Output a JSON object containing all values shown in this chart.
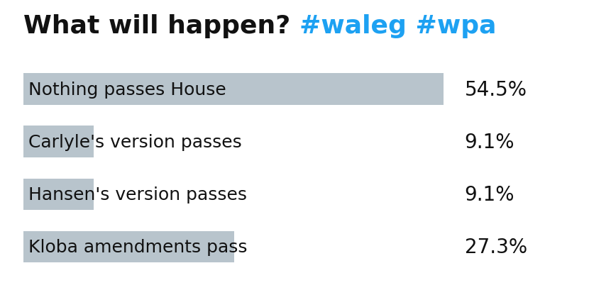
{
  "title_black": "What will happen? ",
  "title_blue": "#waleg #wpa",
  "categories": [
    "Nothing passes House",
    "Carlyle's version passes",
    "Hansen's version passes",
    "Kloba amendments pass"
  ],
  "values": [
    54.5,
    9.1,
    9.1,
    27.3
  ],
  "labels": [
    "54.5%",
    "9.1%",
    "9.1%",
    "27.3%"
  ],
  "bar_color": "#b8c4cc",
  "bg_color": "#ffffff",
  "title_color_black": "#111111",
  "title_color_blue": "#1da1f2",
  "pct_label_color": "#111111",
  "category_label_color": "#111111",
  "max_value": 55,
  "title_fontsize": 26,
  "pct_fontsize": 20,
  "category_fontsize": 18,
  "bar_height": 0.6
}
